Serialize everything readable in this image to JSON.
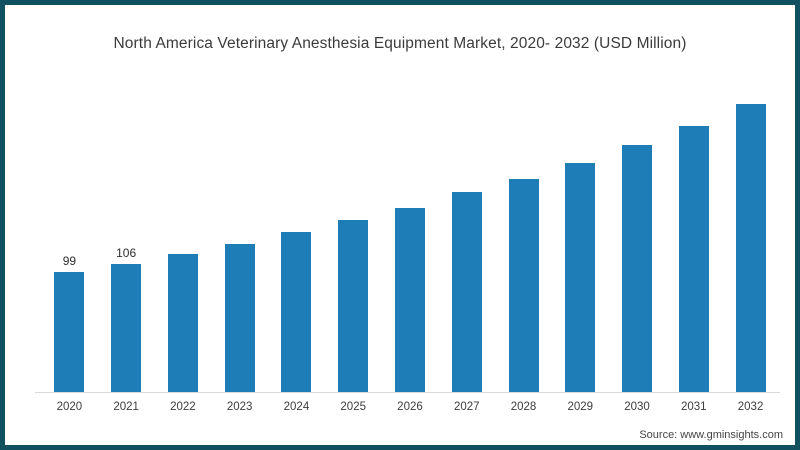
{
  "title": "North America Veterinary Anesthesia Equipment Market, 2020- 2032 (USD Million)",
  "source": "Source: www.gminsights.com",
  "colors": {
    "bar": "#1e7db6",
    "frame_border": "#11505f",
    "axis_line": "#d8d8d8",
    "title_text": "#3b3b3b",
    "tick_text": "#3d3d3d"
  },
  "chart_data": {
    "type": "bar",
    "title": "North America Veterinary Anesthesia Equipment Market, 2020- 2032 (USD Million)",
    "categories": [
      "2020",
      "2021",
      "2022",
      "2023",
      "2024",
      "2025",
      "2026",
      "2027",
      "2028",
      "2029",
      "2030",
      "2031",
      "2032"
    ],
    "values": [
      99,
      106,
      114,
      122,
      132,
      142,
      152,
      165,
      176,
      189,
      204,
      220,
      238
    ],
    "labeled_indices": [
      0,
      1
    ],
    "xlabel": "",
    "ylabel": "",
    "ylim": [
      0,
      258
    ],
    "grid": false,
    "legend": null,
    "y_axis_shown": false
  }
}
